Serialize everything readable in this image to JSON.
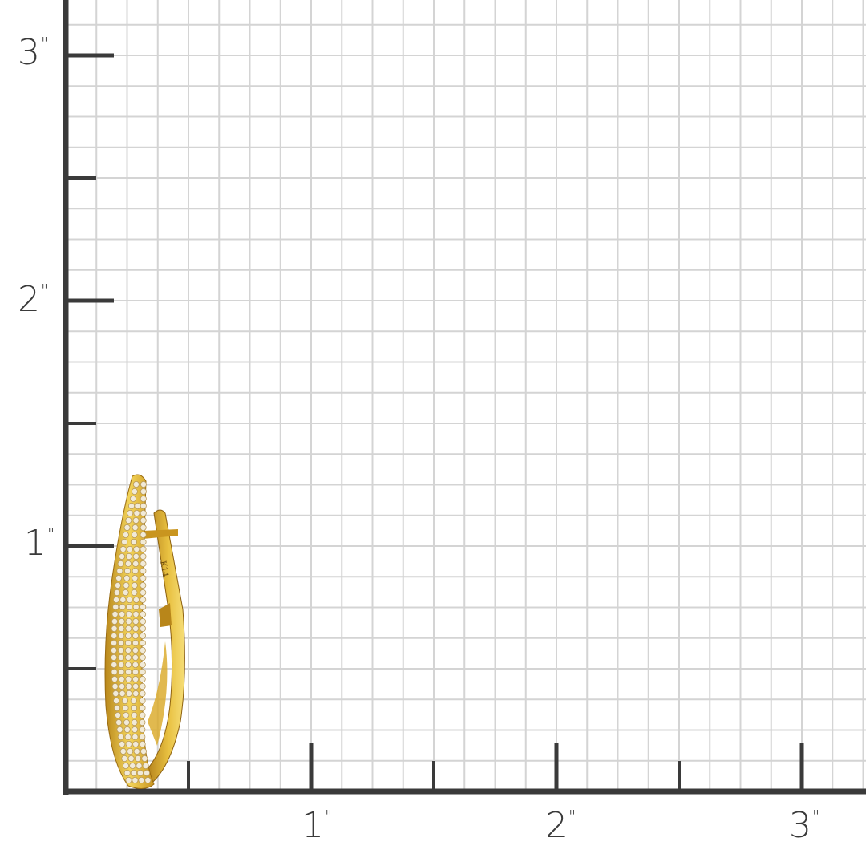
{
  "ruler": {
    "unit_mark": "\"",
    "x_labels": [
      "1",
      "2",
      "3"
    ],
    "y_labels": [
      "1",
      "2",
      "3"
    ],
    "grid_divisions_per_inch": 8,
    "axis_color": "#3a3a3a",
    "grid_color": "#d4d4d4"
  },
  "product": {
    "type": "pave diamond oval hoop earring",
    "metal_color": "#d9a823",
    "stamp": "K14",
    "height_in": 1.3
  }
}
